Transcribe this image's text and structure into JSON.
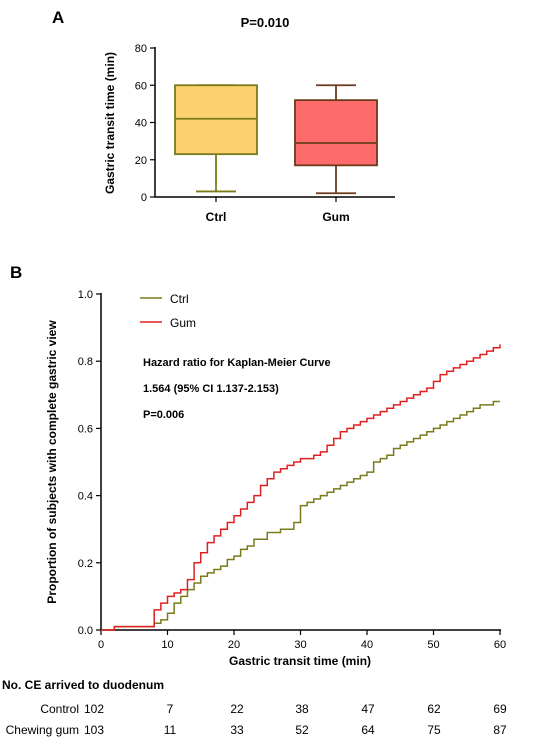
{
  "colors": {
    "ctrl_line": "#7a7a1a",
    "gum_line": "#e02020",
    "ctrl_box_fill": "#fdd06f",
    "ctrl_box_stroke": "#7a7a1a",
    "gum_box_fill": "#ff6b6b",
    "gum_box_stroke": "#6b3a1a",
    "axis": "#000000"
  },
  "chart_data": [
    {
      "type": "box",
      "panel_label": "A",
      "annotation": "P=0.010",
      "ylabel": "Gastric transit time (min)",
      "xlabel": "",
      "ylim": [
        0,
        80
      ],
      "yticks": [
        0,
        20,
        40,
        60,
        80
      ],
      "grid": false,
      "categories": [
        "Ctrl",
        "Gum"
      ],
      "boxes": [
        {
          "category": "Ctrl",
          "min": 3,
          "q1": 23,
          "median": 42,
          "q3": 60,
          "max": 60
        },
        {
          "category": "Gum",
          "min": 2,
          "q1": 17,
          "median": 29,
          "q3": 52,
          "max": 60
        }
      ]
    },
    {
      "type": "line",
      "subtype": "step",
      "panel_label": "B",
      "xlabel": "Gastric transit time (min)",
      "ylabel": "Proportion of subjects with complete gastric view",
      "xlim": [
        0,
        60
      ],
      "ylim": [
        0,
        1
      ],
      "xticks": [
        0,
        10,
        20,
        30,
        40,
        50,
        60
      ],
      "yticks": [
        "0.0",
        "0.2",
        "0.4",
        "0.6",
        "0.8",
        "1.0"
      ],
      "grid": false,
      "legend_position": "top-left",
      "annotations": [
        "Hazard ratio for Kaplan-Meier Curve",
        "1.564 (95% CI 1.137-2.153)",
        "P=0.006"
      ],
      "series": [
        {
          "name": "Ctrl",
          "x": [
            0,
            2,
            6,
            8,
            9,
            10,
            11,
            12,
            13,
            14,
            15,
            16,
            17,
            18,
            19,
            20,
            21,
            22,
            23,
            25,
            27,
            29,
            30,
            31,
            32,
            33,
            34,
            35,
            36,
            37,
            38,
            39,
            40,
            41,
            42,
            43,
            44,
            45,
            46,
            47,
            48,
            49,
            50,
            51,
            52,
            53,
            54,
            55,
            56,
            57,
            58,
            59,
            60
          ],
          "y": [
            0,
            0.01,
            0.01,
            0.02,
            0.03,
            0.05,
            0.08,
            0.1,
            0.12,
            0.14,
            0.16,
            0.17,
            0.18,
            0.19,
            0.21,
            0.22,
            0.24,
            0.25,
            0.27,
            0.29,
            0.3,
            0.32,
            0.37,
            0.38,
            0.39,
            0.4,
            0.41,
            0.42,
            0.43,
            0.44,
            0.45,
            0.46,
            0.47,
            0.5,
            0.51,
            0.52,
            0.54,
            0.55,
            0.56,
            0.57,
            0.58,
            0.59,
            0.6,
            0.61,
            0.62,
            0.63,
            0.64,
            0.65,
            0.66,
            0.67,
            0.67,
            0.68,
            0.68
          ]
        },
        {
          "name": "Gum",
          "x": [
            0,
            2,
            6,
            8,
            9,
            10,
            11,
            12,
            13,
            14,
            15,
            16,
            17,
            18,
            19,
            20,
            21,
            22,
            23,
            24,
            25,
            26,
            27,
            28,
            29,
            30,
            32,
            33,
            34,
            35,
            36,
            37,
            38,
            39,
            40,
            41,
            42,
            43,
            44,
            45,
            46,
            47,
            48,
            49,
            50,
            51,
            52,
            53,
            54,
            55,
            56,
            57,
            58,
            59,
            60
          ],
          "y": [
            0,
            0.01,
            0.01,
            0.06,
            0.08,
            0.1,
            0.11,
            0.12,
            0.15,
            0.2,
            0.23,
            0.26,
            0.28,
            0.3,
            0.32,
            0.34,
            0.36,
            0.38,
            0.4,
            0.43,
            0.45,
            0.47,
            0.48,
            0.49,
            0.5,
            0.51,
            0.52,
            0.53,
            0.55,
            0.57,
            0.59,
            0.6,
            0.61,
            0.62,
            0.63,
            0.64,
            0.65,
            0.66,
            0.67,
            0.68,
            0.69,
            0.7,
            0.71,
            0.72,
            0.74,
            0.76,
            0.77,
            0.78,
            0.79,
            0.8,
            0.81,
            0.82,
            0.83,
            0.84,
            0.85
          ]
        }
      ]
    },
    {
      "type": "table",
      "title": "No. CE arrived to duodenum",
      "rows": [
        {
          "label": "Control",
          "total": "102",
          "values": [
            "7",
            "22",
            "38",
            "47",
            "62",
            "69"
          ]
        },
        {
          "label": "Chewing gum",
          "total": "103",
          "values": [
            "11",
            "33",
            "52",
            "64",
            "75",
            "87"
          ]
        }
      ]
    }
  ]
}
